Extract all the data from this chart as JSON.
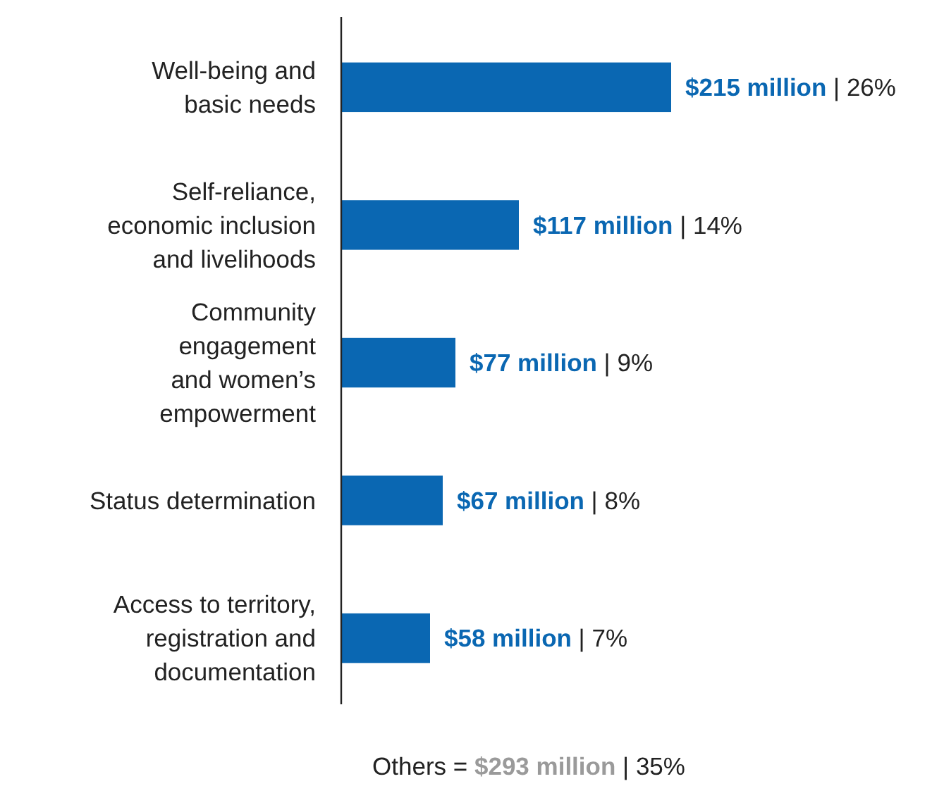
{
  "chart_data": {
    "type": "bar",
    "orientation": "horizontal",
    "categories": [
      "Well-being and\nbasic needs",
      "Self-reliance,\neconomic inclusion\nand livelihoods",
      "Community\nengagement\nand women’s\nempowerment",
      "Status determination",
      "Access to territory,\nregistration and\ndocumentation"
    ],
    "values": [
      26,
      14,
      9,
      8,
      7
    ],
    "color": "#0a67b2",
    "value_labels": [
      "$215 million | 26%",
      "$117 million | 14%",
      "$77 million | 9%",
      "$67 million | 8%",
      "$58 million | 7%"
    ],
    "annotations": [
      "Others = $293 million | 35%"
    ]
  }
}
